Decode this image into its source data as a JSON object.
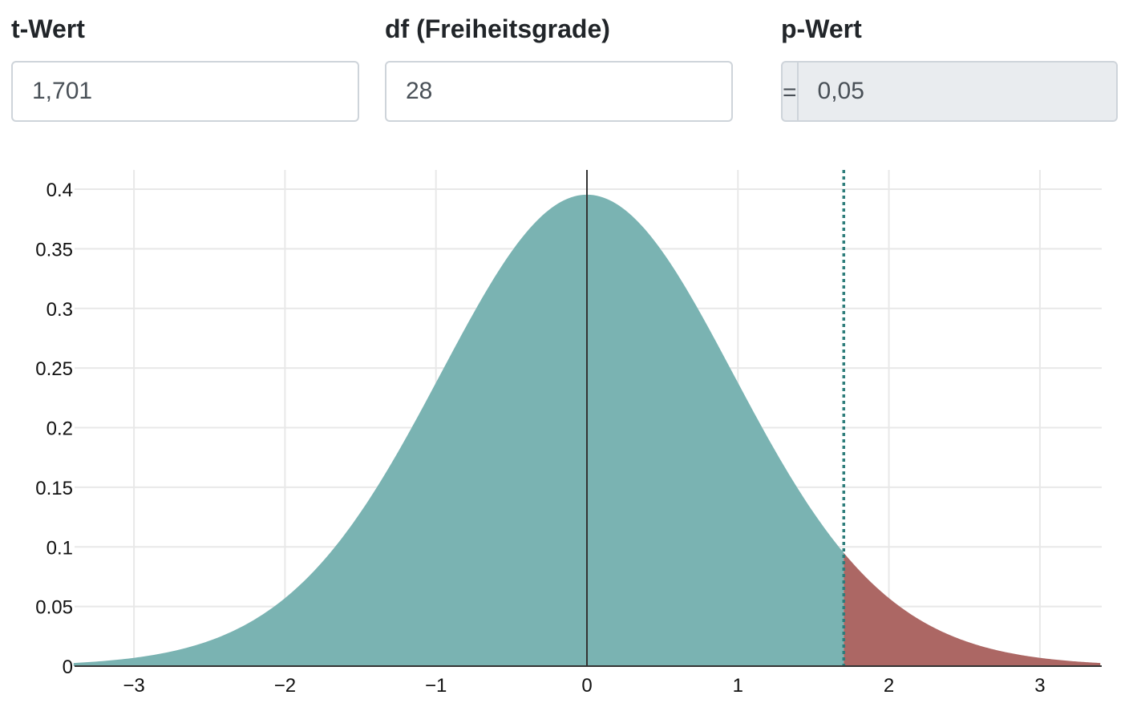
{
  "inputs": {
    "t": {
      "label": "t-Wert",
      "value": "1,701"
    },
    "df": {
      "label": "df (Freiheitsgrade)",
      "value": "28"
    },
    "p": {
      "label": "p-Wert",
      "prefix": "=",
      "value": "0,05"
    }
  },
  "chart_data": {
    "type": "area",
    "distribution": "student-t",
    "df": 28,
    "t_value": 1.701,
    "tail": "right",
    "xlim": [
      -3.4,
      3.4
    ],
    "ylim": [
      0,
      0.4
    ],
    "x_ticks": [
      -3,
      -2,
      -1,
      0,
      1,
      2,
      3
    ],
    "x_tick_labels": [
      "−3",
      "−2",
      "−1",
      "0",
      "1",
      "2",
      "3"
    ],
    "y_ticks": [
      0,
      0.05,
      0.1,
      0.15,
      0.2,
      0.25,
      0.3,
      0.35,
      0.4
    ],
    "y_tick_labels": [
      "0",
      "0.05",
      "0.1",
      "0.15",
      "0.2",
      "0.25",
      "0.3",
      "0.35",
      "0.4"
    ],
    "grid": true,
    "legend": "none",
    "colors": {
      "body": "#7ab3b2",
      "tail": "#ac6764",
      "critical_line": "#2e7d7b",
      "zero_line": "#333333",
      "grid": "#e8e8e8"
    }
  }
}
